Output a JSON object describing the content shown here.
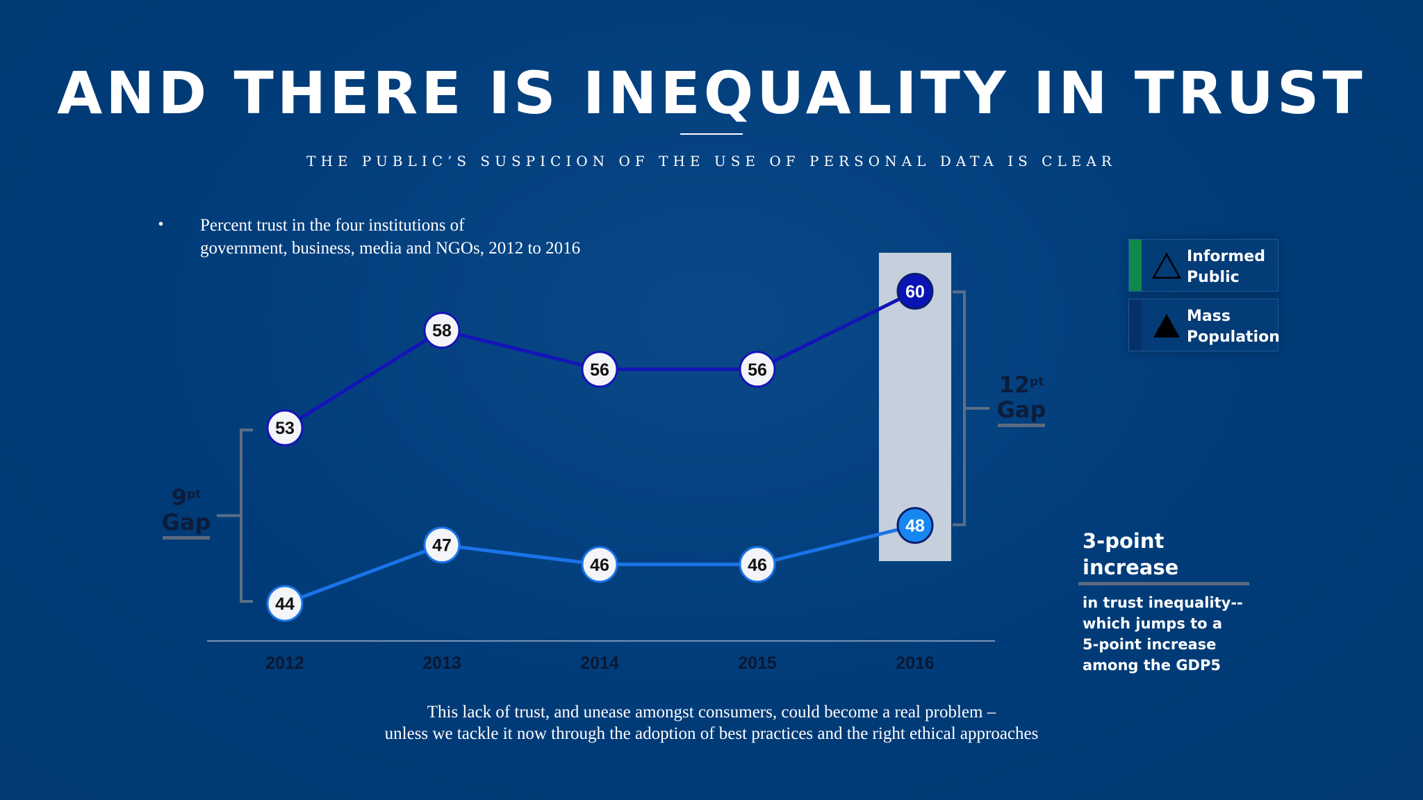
{
  "title": "AND THERE IS INEQUALITY IN TRUST",
  "subtitle": "THE PUBLIC’S SUSPICION OF THE USE OF PERSONAL DATA IS CLEAR",
  "bullet": "•",
  "description": [
    "Percent trust in the four institutions of",
    "government, business, media and NGOs, 2012 to 2016"
  ],
  "legend": [
    {
      "label_line1": "Informed",
      "label_line2": "Public",
      "stripe_color": "#0f8a4a",
      "icon": "outline-triangle-icon"
    },
    {
      "label_line1": "Mass",
      "label_line2": "Population",
      "stripe_color": "#07306a",
      "icon": "filled-triangle-icon"
    }
  ],
  "gap_left": {
    "number": "9",
    "sup": "pt",
    "word": "Gap"
  },
  "gap_right": {
    "number": "12",
    "sup": "pt",
    "word": "Gap"
  },
  "callout": {
    "heading": "3-point increase",
    "body_lines": [
      "in trust inequality--",
      "which jumps to a",
      "5-point increase",
      "among the GDP5"
    ]
  },
  "footer": [
    "This lack of trust, and unease amongst consumers, could become a real problem –",
    "unless we tackle it now through the adoption of best practices and the right ethical approaches"
  ],
  "colors": {
    "background": "#003b78",
    "informed_line": "#1414b8",
    "mass_line": "#1a74e8",
    "highlight_2016_informed": "#0a14b4",
    "highlight_2016_mass": "#1687f0",
    "highlight_band": "#c5d0dc"
  },
  "chart_data": {
    "type": "line",
    "categories": [
      "2012",
      "2013",
      "2014",
      "2015",
      "2016"
    ],
    "series": [
      {
        "name": "Informed Public",
        "values": [
          53,
          58,
          56,
          56,
          60
        ]
      },
      {
        "name": "Mass Population",
        "values": [
          44,
          47,
          46,
          46,
          48
        ]
      }
    ],
    "highlight_category": "2016",
    "data_labels": true,
    "grid": false,
    "legend_position": "top-right"
  }
}
